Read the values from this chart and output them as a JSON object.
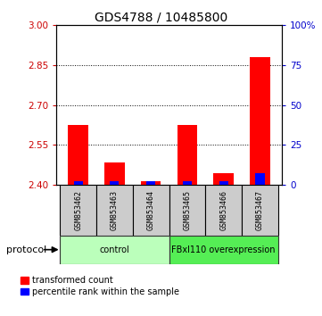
{
  "title": "GDS4788 / 10485800",
  "samples": [
    "GSM853462",
    "GSM853463",
    "GSM853464",
    "GSM853465",
    "GSM853466",
    "GSM853467"
  ],
  "red_values": [
    2.625,
    2.485,
    2.415,
    2.625,
    2.445,
    2.88
  ],
  "blue_values": [
    2.415,
    2.415,
    2.415,
    2.415,
    2.415,
    2.445
  ],
  "red_base": 2.4,
  "blue_base": 2.4,
  "ylim_left": [
    2.4,
    3.0
  ],
  "yticks_left": [
    2.4,
    2.55,
    2.7,
    2.85,
    3.0
  ],
  "yticks_right": [
    0,
    25,
    50,
    75,
    100
  ],
  "ylim_right": [
    0,
    100
  ],
  "groups": [
    {
      "label": "control",
      "start": 0,
      "end": 3,
      "color": "#bbffbb"
    },
    {
      "label": "FBxl110 overexpression",
      "start": 3,
      "end": 6,
      "color": "#55ee55"
    }
  ],
  "protocol_label": "protocol",
  "legend_red": "transformed count",
  "legend_blue": "percentile rank within the sample",
  "bar_width": 0.55,
  "blue_bar_width": 0.25,
  "left_ylabel_color": "#cc0000",
  "right_ylabel_color": "#0000cc",
  "sample_box_color": "#cccccc",
  "right_tick_labels": [
    "0",
    "25",
    "50",
    "75",
    "100%"
  ]
}
